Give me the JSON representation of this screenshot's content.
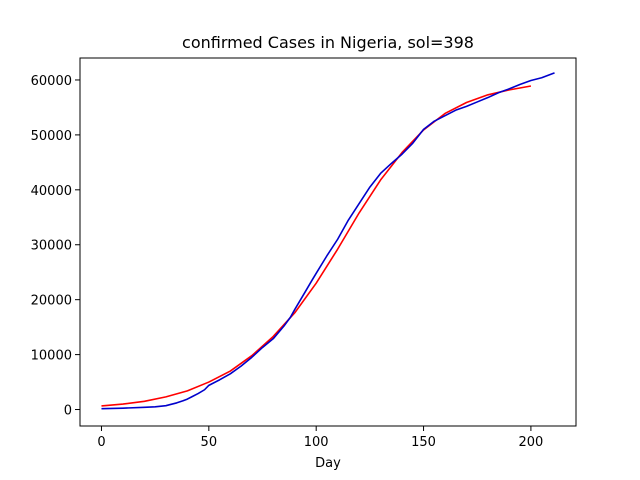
{
  "chart_data": {
    "type": "line",
    "title": "confirmed Cases in Nigeria, sol=398",
    "xlabel": "Day",
    "ylabel": "",
    "xlim": [
      -10,
      221
    ],
    "ylim": [
      -3000,
      64000
    ],
    "xticks": [
      0,
      50,
      100,
      150,
      200
    ],
    "yticks": [
      0,
      10000,
      20000,
      30000,
      40000,
      50000,
      60000
    ],
    "grid": false,
    "series": [
      {
        "color": "#ff0000",
        "x": [
          0,
          10,
          20,
          30,
          40,
          50,
          60,
          70,
          80,
          90,
          100,
          110,
          120,
          130,
          140,
          150,
          160,
          170,
          180,
          190,
          200
        ],
        "y": [
          650,
          1000,
          1500,
          2300,
          3400,
          5000,
          7000,
          9800,
          13300,
          17600,
          23000,
          29200,
          35800,
          41800,
          46800,
          50900,
          53900,
          55900,
          57300,
          58200,
          58900
        ]
      },
      {
        "color": "#0000cc",
        "x": [
          0,
          10,
          20,
          25,
          30,
          32,
          35,
          38,
          40,
          42,
          45,
          48,
          50,
          55,
          60,
          65,
          70,
          75,
          80,
          85,
          88,
          90,
          95,
          98,
          100,
          105,
          110,
          115,
          120,
          125,
          130,
          135,
          140,
          145,
          150,
          155,
          160,
          165,
          170,
          175,
          180,
          185,
          190,
          195,
          200,
          205,
          211
        ],
        "y": [
          150,
          250,
          400,
          500,
          700,
          900,
          1200,
          1600,
          1900,
          2300,
          2900,
          3600,
          4400,
          5400,
          6500,
          7900,
          9500,
          11300,
          12900,
          15200,
          16800,
          18200,
          21500,
          23500,
          24800,
          28000,
          31000,
          34500,
          37500,
          40500,
          43000,
          44800,
          46500,
          48500,
          51000,
          52500,
          53500,
          54500,
          55200,
          56000,
          56800,
          57700,
          58400,
          59200,
          59900,
          60400,
          61300
        ]
      }
    ]
  }
}
